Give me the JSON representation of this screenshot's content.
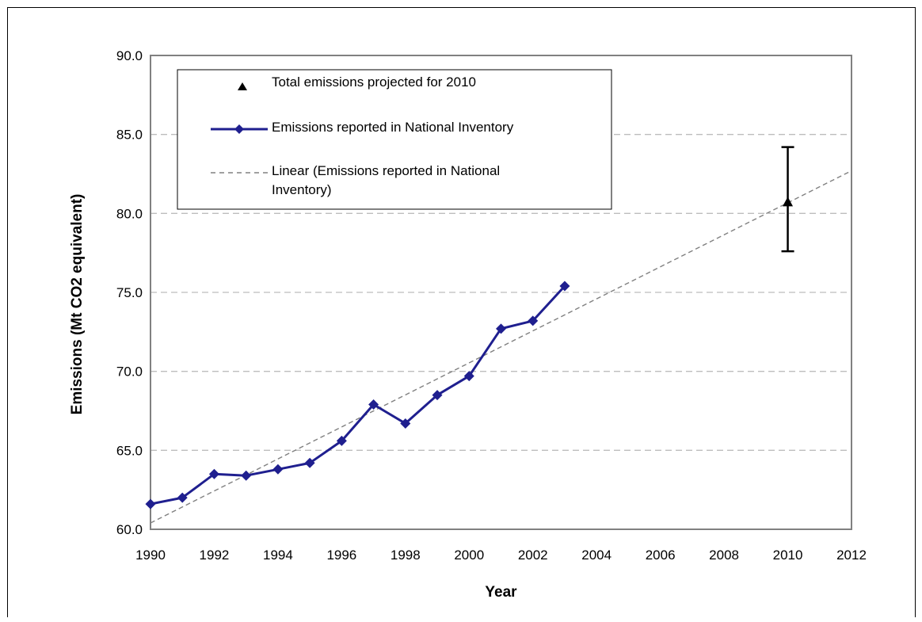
{
  "chart_data": {
    "type": "line",
    "xlabel": "Year",
    "ylabel": "Emissions (Mt CO2 equivalent)",
    "xlim": [
      1990,
      2012
    ],
    "ylim": [
      60,
      90
    ],
    "x_ticks": [
      "1990",
      "1992",
      "1994",
      "1996",
      "1998",
      "2000",
      "2002",
      "2004",
      "2006",
      "2008",
      "2010",
      "2012"
    ],
    "y_ticks": [
      "60.0",
      "65.0",
      "70.0",
      "75.0",
      "80.0",
      "85.0",
      "90.0"
    ],
    "grid": "horizontal dashed",
    "legend_position": "top-left",
    "series": [
      {
        "name": "Emissions reported in National Inventory",
        "color": "#1f1f8f",
        "marker": "diamond",
        "x": [
          1990,
          1991,
          1992,
          1993,
          1994,
          1995,
          1996,
          1997,
          1998,
          1999,
          2000,
          2001,
          2002,
          2003
        ],
        "values": [
          61.6,
          62.0,
          63.5,
          63.4,
          63.8,
          64.2,
          65.6,
          67.9,
          66.7,
          68.5,
          69.7,
          72.7,
          73.2,
          75.4
        ]
      },
      {
        "name": "Linear (Emissions reported in National Inventory)",
        "color": "#808080",
        "style": "dashed",
        "x": [
          1990,
          2012
        ],
        "values": [
          60.4,
          82.7
        ]
      },
      {
        "name": "Total emissions projected for 2010",
        "color": "#000000",
        "marker": "triangle",
        "x": [
          2010
        ],
        "values": [
          80.7
        ],
        "error_low": [
          77.6
        ],
        "error_high": [
          84.2
        ]
      }
    ]
  }
}
